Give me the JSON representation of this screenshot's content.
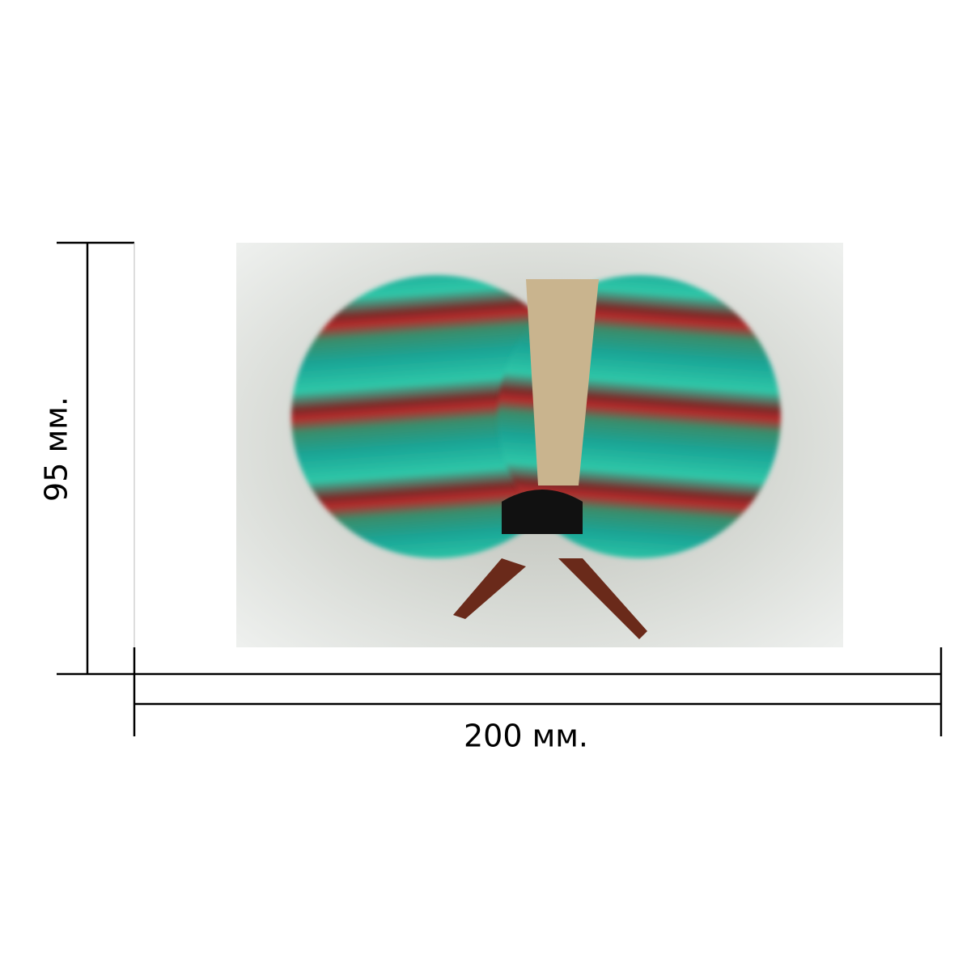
{
  "dimensions": {
    "width": "200 мм.",
    "height": "95 мм."
  }
}
